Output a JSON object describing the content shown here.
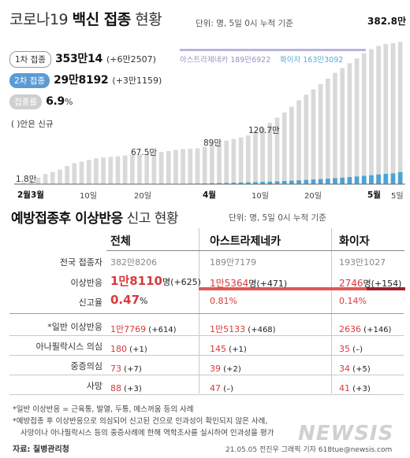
{
  "top": {
    "title_plain1": "코로나19 ",
    "title_bold": "백신 접종",
    "title_plain2": " 현황",
    "unit": "단위: 명, 5일 0시 누적 기준",
    "peak_label": "382.8만",
    "rows": [
      {
        "pill": "1차 접종",
        "value": "353만14",
        "delta": "(+6만2507)"
      },
      {
        "pill": "2차 접종",
        "value": "29만8192",
        "delta": "(+3만1159)"
      },
      {
        "pill": "접종률",
        "value": "6.9",
        "suffix": "%"
      }
    ],
    "note": "( )안은 신규",
    "legend": {
      "az": "아스트라제네카 189만6922",
      "pf": "화이자 163만3092"
    },
    "annotations": [
      "1.8만",
      "67.5만",
      "89만",
      "120.7만"
    ],
    "x_ticks": [
      "2월3월",
      "10일",
      "20일",
      "4월",
      "10일",
      "20일",
      "5월",
      "5일"
    ]
  },
  "chart_data": {
    "type": "bar",
    "title": "코로나19 백신 접종 현황",
    "unit": "명, 5일 0시 누적 기준",
    "x_labels": [
      "2월3월",
      "10일",
      "20일",
      "4월",
      "10일",
      "20일",
      "5월",
      "5일"
    ],
    "annotations": [
      {
        "label": "1.8만",
        "value": 18000
      },
      {
        "label": "67.5만",
        "value": 675000
      },
      {
        "label": "89만",
        "value": 890000
      },
      {
        "label": "120.7만",
        "value": 1207000
      },
      {
        "label": "382.8만",
        "value": 3828000
      }
    ],
    "series": [
      {
        "name": "1차 접종",
        "values": [
          18000,
          40000,
          95000,
          165000,
          250000,
          300000,
          360000,
          450000,
          520000,
          560000,
          600000,
          640000,
          660000,
          675000,
          690000,
          710000,
          725000,
          740000,
          760000,
          780000,
          800000,
          820000,
          850000,
          870000,
          880000,
          890000,
          930000,
          980000,
          1020000,
          1080000,
          1120000,
          1160000,
          1207000,
          1300000,
          1400000,
          1520000,
          1650000,
          1780000,
          1920000,
          2080000,
          2220000,
          2350000,
          2480000,
          2620000,
          2760000,
          2880000,
          3000000,
          3120000,
          3250000,
          3350000,
          3430000,
          3480000,
          3500000,
          3530014
        ]
      },
      {
        "name": "2차 접종",
        "values": [
          0,
          0,
          0,
          0,
          0,
          0,
          0,
          0,
          0,
          0,
          0,
          0,
          0,
          0,
          0,
          0,
          0,
          0,
          0,
          0,
          1000,
          3000,
          5000,
          8000,
          12000,
          15000,
          18000,
          22000,
          26000,
          30000,
          35000,
          40000,
          45000,
          50000,
          56000,
          62000,
          70000,
          78000,
          86000,
          95000,
          105000,
          115000,
          125000,
          135000,
          148000,
          160000,
          175000,
          190000,
          205000,
          220000,
          240000,
          255000,
          267000,
          298192
        ]
      }
    ]
  },
  "table": {
    "title_bold": "예방접종후 이상반응",
    "title_plain": " 신고 현황",
    "unit": "단위: 명, 5일 0시 누적 기준",
    "headers": [
      "전체",
      "아스트라제네카",
      "화이자"
    ],
    "rows": [
      {
        "label": "전국 접종자",
        "cells": [
          {
            "main": "382만8206",
            "sub": ""
          },
          {
            "main": "189만7179",
            "sub": ""
          },
          {
            "main": "193만1027",
            "sub": ""
          }
        ]
      },
      {
        "label": "이상반응",
        "cells": [
          {
            "main": "1만8110",
            "sub": "명(+625)"
          },
          {
            "main": "1만5364",
            "sub": "명(+471)"
          },
          {
            "main": "2746",
            "sub": "명(+154)"
          }
        ]
      },
      {
        "label": "신고율",
        "cells": [
          {
            "main": "0.47",
            "sub": "%"
          },
          {
            "main": "0.81%",
            "sub": ""
          },
          {
            "main": "0.14%",
            "sub": ""
          }
        ]
      },
      {
        "label": "*일반 이상반응",
        "cells": [
          {
            "main": "1만7769",
            "sub": " (+614)"
          },
          {
            "main": "1만5133",
            "sub": " (+468)"
          },
          {
            "main": "2636",
            "sub": " (+146)"
          }
        ]
      },
      {
        "label": "아나필락시스 의심",
        "cells": [
          {
            "main": "180",
            "sub": " (+1)"
          },
          {
            "main": "145",
            "sub": " (+1)"
          },
          {
            "main": "35",
            "sub": " (–)"
          }
        ]
      },
      {
        "label": "중증의심",
        "cells": [
          {
            "main": "73",
            "sub": " (+7)"
          },
          {
            "main": "39",
            "sub": " (+2)"
          },
          {
            "main": "34",
            "sub": " (+5)"
          }
        ]
      },
      {
        "label": "사망",
        "cells": [
          {
            "main": "88",
            "sub": " (+3)"
          },
          {
            "main": "47",
            "sub": " (–)"
          },
          {
            "main": "41",
            "sub": " (+3)"
          }
        ]
      }
    ],
    "rates": [
      0.81,
      0.14
    ]
  },
  "footnotes": [
    "*일반 이상반응 = 근육통, 발열, 두통, 메스꺼움 등의 사례",
    "*예방접종 후 이상반응으로 의심되어 신고된 건으로 인과성이 확인되지 않은 사례,",
    "사망이나 아나필락시스 등의 중증사례에 한해 역학조사를 실시하여 인과성을 평가"
  ],
  "source": "자료: 질병관리청",
  "credit": "21.05.05 전진우 그래픽 기자 618tue@newsis.com",
  "logo": "NEWSIS"
}
